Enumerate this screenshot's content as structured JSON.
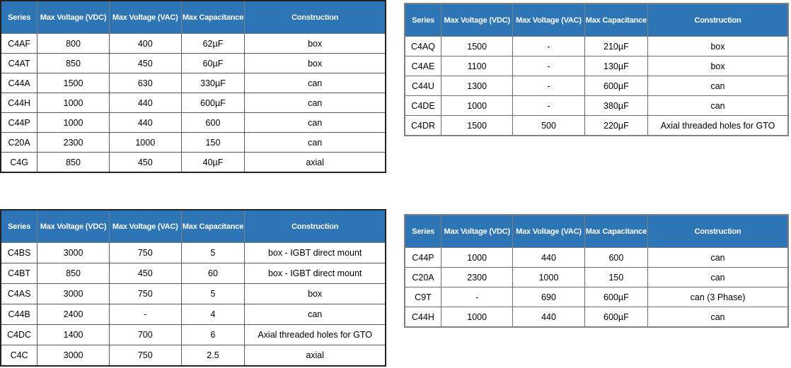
{
  "colors": {
    "header_bg": "#2e75b6",
    "header_text": "#ffffff",
    "header_grid": "#7f7f7f",
    "grid_dark": "#595959",
    "grid_gray": "#6e6e6e",
    "outer_dark": "#232323",
    "outer_gray": "#808080",
    "body_text": "#000000"
  },
  "columns": [
    "Series",
    "Max Voltage (VDC)",
    "Max Voltage (VAC)",
    "Max Capacitance",
    "Construction"
  ],
  "tables": [
    {
      "name": "capacitor-series-top-left",
      "rows": [
        [
          "C4AF",
          "800",
          "400",
          "62µF",
          "box"
        ],
        [
          "C4AT",
          "850",
          "450",
          "60µF",
          "box"
        ],
        [
          "C44A",
          "1500",
          "630",
          "330µF",
          "can"
        ],
        [
          "C44H",
          "1000",
          "440",
          "600µF",
          "can"
        ],
        [
          "C44P",
          "1000",
          "440",
          "600",
          "can"
        ],
        [
          "C20A",
          "2300",
          "1000",
          "150",
          "can"
        ],
        [
          "C4G",
          "850",
          "450",
          "40µF",
          "axial"
        ]
      ]
    },
    {
      "name": "capacitor-series-top-right",
      "rows": [
        [
          "C4AQ",
          "1500",
          "-",
          "210µF",
          "box"
        ],
        [
          "C4AE",
          "1100",
          "-",
          "130µF",
          "box"
        ],
        [
          "C44U",
          "1300",
          "-",
          "600µF",
          "can"
        ],
        [
          "C4DE",
          "1000",
          "-",
          "380µF",
          "can"
        ],
        [
          "C4DR",
          "1500",
          "500",
          "220µF",
          "Axial threaded holes for GTO"
        ]
      ]
    },
    {
      "name": "capacitor-series-bottom-left",
      "rows": [
        [
          "C4BS",
          "3000",
          "750",
          "5",
          "box - IGBT direct mount"
        ],
        [
          "C4BT",
          "850",
          "450",
          "60",
          "box - IGBT direct mount"
        ],
        [
          "C4AS",
          "3000",
          "750",
          "5",
          "box"
        ],
        [
          "C44B",
          "2400",
          "-",
          "4",
          "can"
        ],
        [
          "C4DC",
          "1400",
          "700",
          "6",
          "Axial threaded holes for GTO"
        ],
        [
          "C4C",
          "3000",
          "750",
          "2.5",
          "axial"
        ]
      ]
    },
    {
      "name": "capacitor-series-bottom-right",
      "rows": [
        [
          "C44P",
          "1000",
          "440",
          "600",
          "can"
        ],
        [
          "C20A",
          "2300",
          "1000",
          "150",
          "can"
        ],
        [
          "C9T",
          "-",
          "690",
          "600µF",
          "can (3 Phase)"
        ],
        [
          "C44H",
          "1000",
          "440",
          "600µF",
          "can"
        ]
      ]
    }
  ]
}
